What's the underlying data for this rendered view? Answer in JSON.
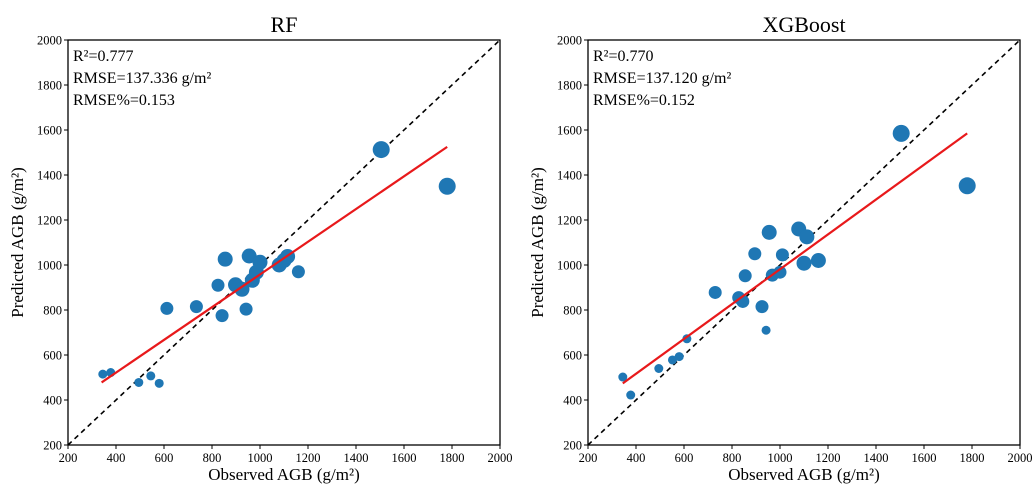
{
  "chart_data": [
    {
      "type": "scatter",
      "title": "RF",
      "xlabel": "Observed AGB (g/m²)",
      "ylabel": "Predicted AGB (g/m²)",
      "xlim": [
        200,
        2000
      ],
      "ylim": [
        200,
        2000
      ],
      "xticks": [
        200,
        400,
        600,
        800,
        1000,
        1200,
        1400,
        1600,
        1800,
        2000
      ],
      "yticks": [
        200,
        400,
        600,
        800,
        1000,
        1200,
        1400,
        1600,
        1800,
        2000
      ],
      "grid": false,
      "annotations": [
        "R²=0.777",
        "RMSE=137.336 g/m²",
        "RMSE%=0.153"
      ],
      "colors": {
        "points": "#1f77b4",
        "fit_line": "#e8191b",
        "reference_line": "#000000"
      },
      "reference_line": {
        "label": "1:1",
        "x": [
          200,
          2000
        ],
        "y": [
          200,
          2000
        ]
      },
      "fit_line": {
        "x": [
          340,
          1780
        ],
        "y": [
          478,
          1525
        ]
      },
      "points": [
        {
          "x": 345,
          "y": 515,
          "size": "small"
        },
        {
          "x": 378,
          "y": 522,
          "size": "small"
        },
        {
          "x": 495,
          "y": 478,
          "size": "small"
        },
        {
          "x": 545,
          "y": 507,
          "size": "small"
        },
        {
          "x": 580,
          "y": 474,
          "size": "small"
        },
        {
          "x": 612,
          "y": 807,
          "size": "medium"
        },
        {
          "x": 735,
          "y": 815,
          "size": "medium"
        },
        {
          "x": 825,
          "y": 910,
          "size": "medium"
        },
        {
          "x": 842,
          "y": 775,
          "size": "medium"
        },
        {
          "x": 855,
          "y": 1026,
          "size": "large"
        },
        {
          "x": 898,
          "y": 912,
          "size": "large"
        },
        {
          "x": 925,
          "y": 892,
          "size": "large"
        },
        {
          "x": 942,
          "y": 804,
          "size": "medium"
        },
        {
          "x": 955,
          "y": 1040,
          "size": "large"
        },
        {
          "x": 968,
          "y": 932,
          "size": "large"
        },
        {
          "x": 985,
          "y": 968,
          "size": "large"
        },
        {
          "x": 1000,
          "y": 1012,
          "size": "large"
        },
        {
          "x": 1080,
          "y": 1000,
          "size": "large"
        },
        {
          "x": 1100,
          "y": 1020,
          "size": "large"
        },
        {
          "x": 1115,
          "y": 1038,
          "size": "large"
        },
        {
          "x": 1160,
          "y": 970,
          "size": "medium"
        },
        {
          "x": 1505,
          "y": 1513,
          "size": "xlarge"
        },
        {
          "x": 1780,
          "y": 1350,
          "size": "xlarge"
        }
      ]
    },
    {
      "type": "scatter",
      "title": "XGBoost",
      "xlabel": "Observed AGB (g/m²)",
      "ylabel": "Predicted AGB (g/m²)",
      "xlim": [
        200,
        2000
      ],
      "ylim": [
        200,
        2000
      ],
      "xticks": [
        200,
        400,
        600,
        800,
        1000,
        1200,
        1400,
        1600,
        1800,
        2000
      ],
      "yticks": [
        200,
        400,
        600,
        800,
        1000,
        1200,
        1400,
        1600,
        1800,
        2000
      ],
      "grid": false,
      "annotations": [
        "R²=0.770",
        "RMSE=137.120 g/m²",
        "RMSE%=0.152"
      ],
      "colors": {
        "points": "#1f77b4",
        "fit_line": "#e8191b",
        "reference_line": "#000000"
      },
      "reference_line": {
        "label": "1:1",
        "x": [
          200,
          2000
        ],
        "y": [
          200,
          2000
        ]
      },
      "fit_line": {
        "x": [
          345,
          1780
        ],
        "y": [
          474,
          1585
        ]
      },
      "points": [
        {
          "x": 345,
          "y": 502,
          "size": "small"
        },
        {
          "x": 378,
          "y": 422,
          "size": "small"
        },
        {
          "x": 495,
          "y": 540,
          "size": "small"
        },
        {
          "x": 552,
          "y": 578,
          "size": "small"
        },
        {
          "x": 580,
          "y": 593,
          "size": "small"
        },
        {
          "x": 612,
          "y": 672,
          "size": "small"
        },
        {
          "x": 730,
          "y": 878,
          "size": "medium"
        },
        {
          "x": 828,
          "y": 855,
          "size": "medium"
        },
        {
          "x": 845,
          "y": 838,
          "size": "medium"
        },
        {
          "x": 855,
          "y": 952,
          "size": "medium"
        },
        {
          "x": 895,
          "y": 1050,
          "size": "medium"
        },
        {
          "x": 925,
          "y": 815,
          "size": "medium"
        },
        {
          "x": 942,
          "y": 710,
          "size": "small"
        },
        {
          "x": 955,
          "y": 1145,
          "size": "large"
        },
        {
          "x": 968,
          "y": 955,
          "size": "medium"
        },
        {
          "x": 1000,
          "y": 968,
          "size": "medium"
        },
        {
          "x": 1010,
          "y": 1045,
          "size": "medium"
        },
        {
          "x": 1078,
          "y": 1160,
          "size": "large"
        },
        {
          "x": 1100,
          "y": 1008,
          "size": "large"
        },
        {
          "x": 1112,
          "y": 1125,
          "size": "large"
        },
        {
          "x": 1160,
          "y": 1020,
          "size": "large"
        },
        {
          "x": 1505,
          "y": 1585,
          "size": "xlarge"
        },
        {
          "x": 1780,
          "y": 1352,
          "size": "xlarge"
        }
      ]
    }
  ]
}
